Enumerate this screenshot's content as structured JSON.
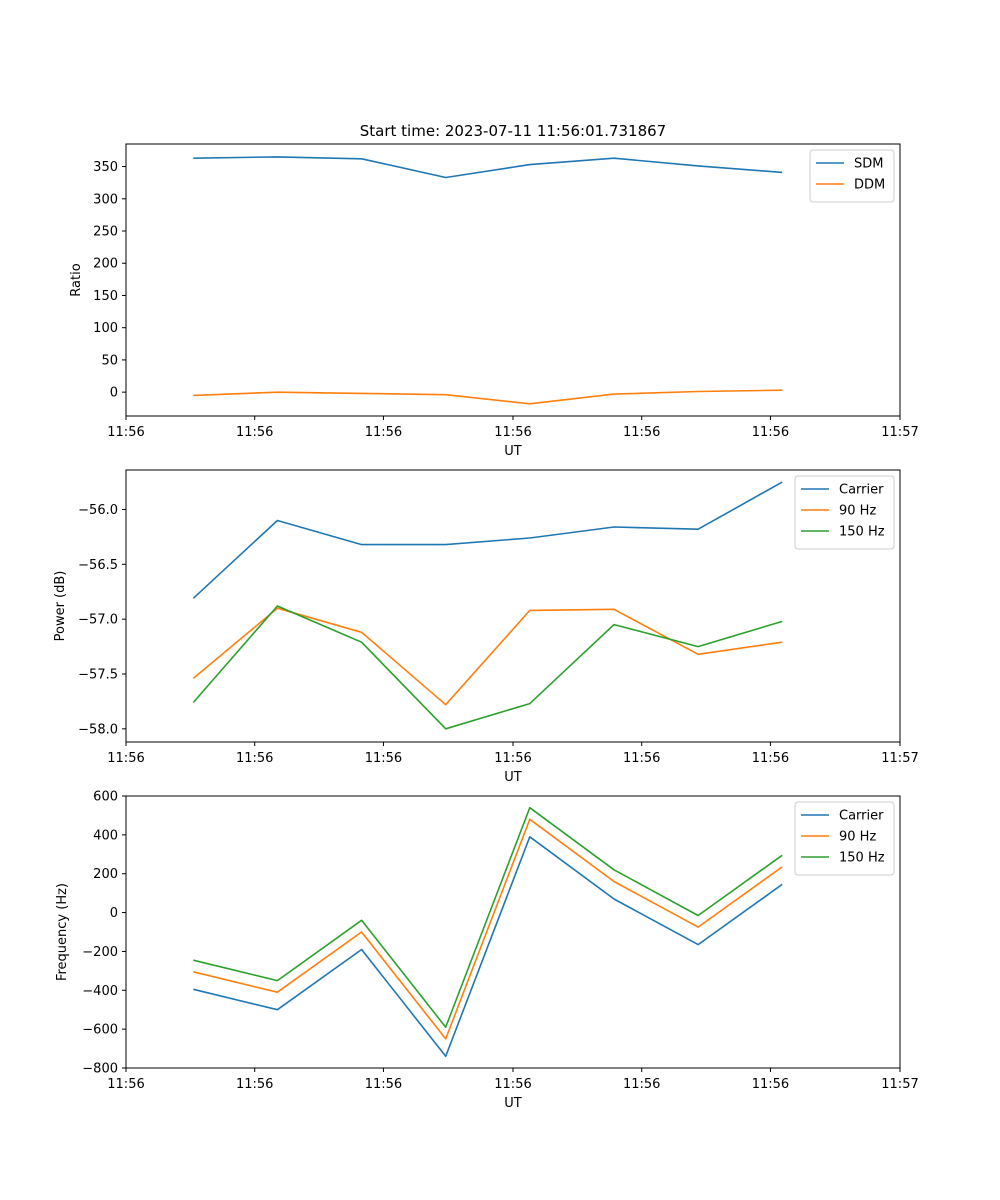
{
  "figure_title": "Start time: 2023-07-11 11:56:01.731867",
  "colors": {
    "C0": "#1f77b4",
    "C1": "#ff7f0e",
    "C2": "#2ca02c"
  },
  "chart_data": [
    {
      "type": "line",
      "title": "Start time: 2023-07-11 11:56:01.731867",
      "xlabel": "UT",
      "ylabel": "Ratio",
      "x": [
        1,
        2,
        3,
        4,
        5,
        6,
        7,
        8
      ],
      "xlim": [
        0.2,
        9.4
      ],
      "xticks": [
        0.2,
        1.73,
        3.26,
        4.8,
        6.33,
        7.86,
        9.4
      ],
      "xtick_labels": [
        "11:56",
        "11:56",
        "11:56",
        "11:56",
        "11:56",
        "11:56",
        "11:57"
      ],
      "ylim": [
        -37,
        385
      ],
      "yticks": [
        0,
        50,
        100,
        150,
        200,
        250,
        300,
        350
      ],
      "ytick_labels": [
        "0",
        "50",
        "100",
        "150",
        "200",
        "250",
        "300",
        "350"
      ],
      "legend_position": "top-right",
      "series": [
        {
          "name": "SDM",
          "color": "#1f77b4",
          "values": [
            363,
            365,
            362,
            333,
            353,
            363,
            351,
            341
          ]
        },
        {
          "name": "DDM",
          "color": "#ff7f0e",
          "values": [
            -5,
            0,
            -2,
            -4,
            -18,
            -3,
            1,
            3
          ]
        }
      ]
    },
    {
      "type": "line",
      "title": "",
      "xlabel": "UT",
      "ylabel": "Power (dB)",
      "x": [
        1,
        2,
        3,
        4,
        5,
        6,
        7,
        8
      ],
      "xlim": [
        0.2,
        9.4
      ],
      "xticks": [
        0.2,
        1.73,
        3.26,
        4.8,
        6.33,
        7.86,
        9.4
      ],
      "xtick_labels": [
        "11:56",
        "11:56",
        "11:56",
        "11:56",
        "11:56",
        "11:56",
        "11:57"
      ],
      "ylim": [
        -58.12,
        -55.64
      ],
      "yticks": [
        -58.0,
        -57.5,
        -57.0,
        -56.5,
        -56.0
      ],
      "ytick_labels": [
        "−58.0",
        "−57.5",
        "−57.0",
        "−56.5",
        "−56.0"
      ],
      "legend_position": "top-right",
      "series": [
        {
          "name": "Carrier",
          "color": "#1f77b4",
          "values": [
            -56.81,
            -56.1,
            -56.32,
            -56.32,
            -56.26,
            -56.16,
            -56.18,
            -55.75
          ]
        },
        {
          "name": "90 Hz",
          "color": "#ff7f0e",
          "values": [
            -57.54,
            -56.9,
            -57.12,
            -57.78,
            -56.92,
            -56.91,
            -57.32,
            -57.21
          ]
        },
        {
          "name": "150 Hz",
          "color": "#2ca02c",
          "values": [
            -57.76,
            -56.88,
            -57.21,
            -58.0,
            -57.77,
            -57.05,
            -57.25,
            -57.02
          ]
        }
      ]
    },
    {
      "type": "line",
      "title": "",
      "xlabel": "UT",
      "ylabel": "Frequency (Hz)",
      "x": [
        1,
        2,
        3,
        4,
        5,
        6,
        7,
        8
      ],
      "xlim": [
        0.2,
        9.4
      ],
      "xticks": [
        0.2,
        1.73,
        3.26,
        4.8,
        6.33,
        7.86,
        9.4
      ],
      "xtick_labels": [
        "11:56",
        "11:56",
        "11:56",
        "11:56",
        "11:56",
        "11:56",
        "11:57"
      ],
      "ylim": [
        -800,
        600
      ],
      "yticks": [
        -800,
        -600,
        -400,
        -200,
        0,
        200,
        400,
        600
      ],
      "ytick_labels": [
        "−800",
        "−600",
        "−400",
        "−200",
        "0",
        "200",
        "400",
        "600"
      ],
      "legend_position": "top-right",
      "series": [
        {
          "name": "Carrier",
          "color": "#1f77b4",
          "values": [
            -395,
            -500,
            -190,
            -740,
            390,
            70,
            -165,
            145
          ]
        },
        {
          "name": "90 Hz",
          "color": "#ff7f0e",
          "values": [
            -305,
            -410,
            -100,
            -650,
            480,
            160,
            -75,
            235
          ]
        },
        {
          "name": "150 Hz",
          "color": "#2ca02c",
          "values": [
            -245,
            -350,
            -40,
            -590,
            540,
            220,
            -15,
            295
          ]
        }
      ]
    }
  ]
}
